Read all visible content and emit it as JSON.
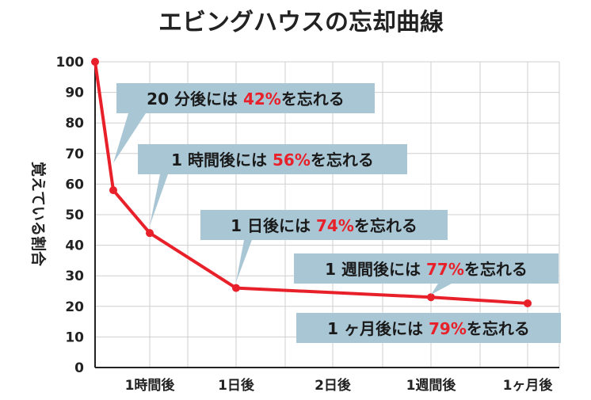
{
  "chart_data": {
    "type": "line",
    "title": "エビングハウスの忘却曲線",
    "ylabel": "覚えている割合",
    "xlabel": "",
    "ylim": [
      0,
      100
    ],
    "yticks": [
      0,
      10,
      20,
      30,
      40,
      50,
      60,
      70,
      80,
      90,
      100
    ],
    "xticks": [
      "1時間後",
      "1日後",
      "2日後",
      "1週間後",
      "1ヶ月後"
    ],
    "grid": true,
    "series": [
      {
        "color": "#e8202a",
        "points": [
          {
            "x": "0",
            "y": 100
          },
          {
            "x": "20分後",
            "y": 58
          },
          {
            "x": "1時間後",
            "y": 44
          },
          {
            "x": "1日後",
            "y": 26
          },
          {
            "x": "1週間後",
            "y": 23
          },
          {
            "x": "1ヶ月後",
            "y": 21
          }
        ]
      }
    ],
    "annotations": [
      {
        "prefix": "20 分後には ",
        "pct": "42%",
        "suffix": "を忘れる"
      },
      {
        "prefix": "1 時間後には ",
        "pct": "56%",
        "suffix": "を忘れる"
      },
      {
        "prefix": "1 日後には ",
        "pct": "74%",
        "suffix": "を忘れる"
      },
      {
        "prefix": "1 週間後には ",
        "pct": "77%",
        "suffix": "を忘れる"
      },
      {
        "prefix": "1 ヶ月後には ",
        "pct": "79%",
        "suffix": "を忘れる"
      }
    ]
  }
}
